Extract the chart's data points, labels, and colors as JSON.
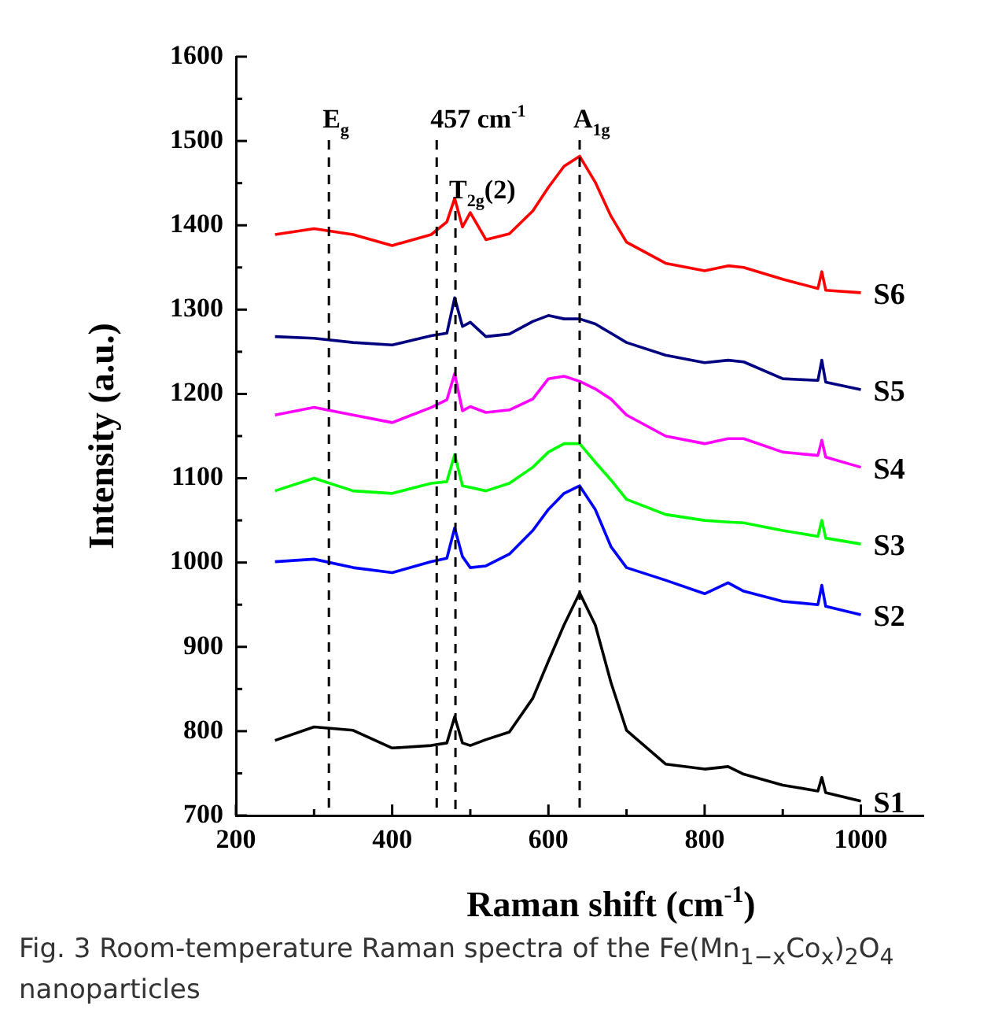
{
  "chart_data": {
    "type": "line",
    "xlabel": "Raman shift (cm$^{-1}$)",
    "ylabel": "Intensity (a.u.)",
    "xlim": [
      200,
      1080
    ],
    "xticks": [
      200,
      {
        "value": 300,
        "label": null
      },
      400,
      {
        "value": 500,
        "label": null
      },
      600,
      {
        "value": 700,
        "label": null
      },
      800,
      {
        "value": 900,
        "label": null
      },
      1000
    ],
    "ylim": [
      700,
      1600
    ],
    "yticks": [
      700,
      {
        "value": 750,
        "label": null
      },
      800,
      {
        "value": 850,
        "label": null
      },
      900,
      {
        "value": 950,
        "label": null
      },
      1000,
      {
        "value": 1050,
        "label": null
      },
      1100,
      {
        "value": 1150,
        "label": null
      },
      1200,
      {
        "value": 1250,
        "label": null
      },
      1300,
      {
        "value": 1350,
        "label": null
      },
      1400,
      {
        "value": 1450,
        "label": null
      },
      1500,
      {
        "value": 1550,
        "label": null
      },
      1600
    ],
    "grid": false,
    "legend": false,
    "marker": "none",
    "line_style": "solid",
    "x": [
      250,
      300,
      350,
      400,
      450,
      470,
      480,
      490,
      500,
      520,
      550,
      580,
      600,
      620,
      640,
      660,
      680,
      700,
      750,
      800,
      830,
      850,
      900,
      945,
      950,
      955,
      1000
    ],
    "series": [
      {
        "name": "S1",
        "color": "#000000",
        "values": [
          789,
          805,
          801,
          780,
          783,
          786,
          817,
          786,
          783,
          790,
          799,
          839,
          883,
          926,
          964,
          926,
          858,
          801,
          761,
          755,
          758,
          749,
          736,
          729,
          745,
          727,
          717
        ]
      },
      {
        "name": "S2",
        "color": "#0000ff",
        "values": [
          1001,
          1004,
          994,
          988,
          1001,
          1005,
          1041,
          1007,
          994,
          996,
          1010,
          1038,
          1063,
          1082,
          1091,
          1063,
          1019,
          994,
          979,
          963,
          976,
          966,
          954,
          950,
          973,
          948,
          938
        ]
      },
      {
        "name": "S3",
        "color": "#00ff00",
        "values": [
          1085,
          1100,
          1085,
          1082,
          1094,
          1096,
          1128,
          1091,
          1089,
          1085,
          1094,
          1113,
          1131,
          1141,
          1141,
          1119,
          1098,
          1075,
          1057,
          1050,
          1048,
          1047,
          1038,
          1031,
          1050,
          1029,
          1022
        ]
      },
      {
        "name": "S4",
        "color": "#ff00ff",
        "values": [
          1175,
          1184,
          1175,
          1166,
          1184,
          1193,
          1224,
          1180,
          1185,
          1178,
          1181,
          1194,
          1218,
          1221,
          1215,
          1206,
          1194,
          1175,
          1150,
          1141,
          1147,
          1147,
          1131,
          1127,
          1145,
          1125,
          1113
        ]
      },
      {
        "name": "S5",
        "color": "#000080",
        "values": [
          1268,
          1266,
          1261,
          1258,
          1269,
          1272,
          1314,
          1280,
          1285,
          1268,
          1271,
          1286,
          1293,
          1289,
          1289,
          1283,
          1272,
          1261,
          1246,
          1237,
          1240,
          1238,
          1218,
          1216,
          1240,
          1214,
          1205
        ]
      },
      {
        "name": "S6",
        "color": "#ff0000",
        "values": [
          1389,
          1396,
          1389,
          1376,
          1389,
          1404,
          1432,
          1398,
          1415,
          1383,
          1390,
          1417,
          1445,
          1470,
          1482,
          1451,
          1411,
          1380,
          1355,
          1346,
          1352,
          1350,
          1336,
          1325,
          1345,
          1323,
          1320
        ]
      }
    ],
    "ref_lines": [
      {
        "axis": "x",
        "value": 319,
        "label": "E$_{g}$",
        "line_style": "dashed",
        "color": "#000000"
      },
      {
        "axis": "x",
        "value": 457,
        "label": "457 cm$^{-1}$",
        "line_style": "dashed",
        "color": "#000000"
      },
      {
        "axis": "x",
        "value": 481,
        "label": "T$_{2g}$(2)",
        "line_style": "dashed",
        "color": "#000000"
      },
      {
        "axis": "x",
        "value": 640,
        "label": "A$_{1g}$",
        "line_style": "dashed",
        "color": "#000000"
      }
    ],
    "annotations": [
      "Fig. 3 Room-temperature Raman spectra of the Fe(Mn$_{1−x}$Co$_{x}$)$_{2}$O$_{4}$ nanoparticles"
    ]
  }
}
